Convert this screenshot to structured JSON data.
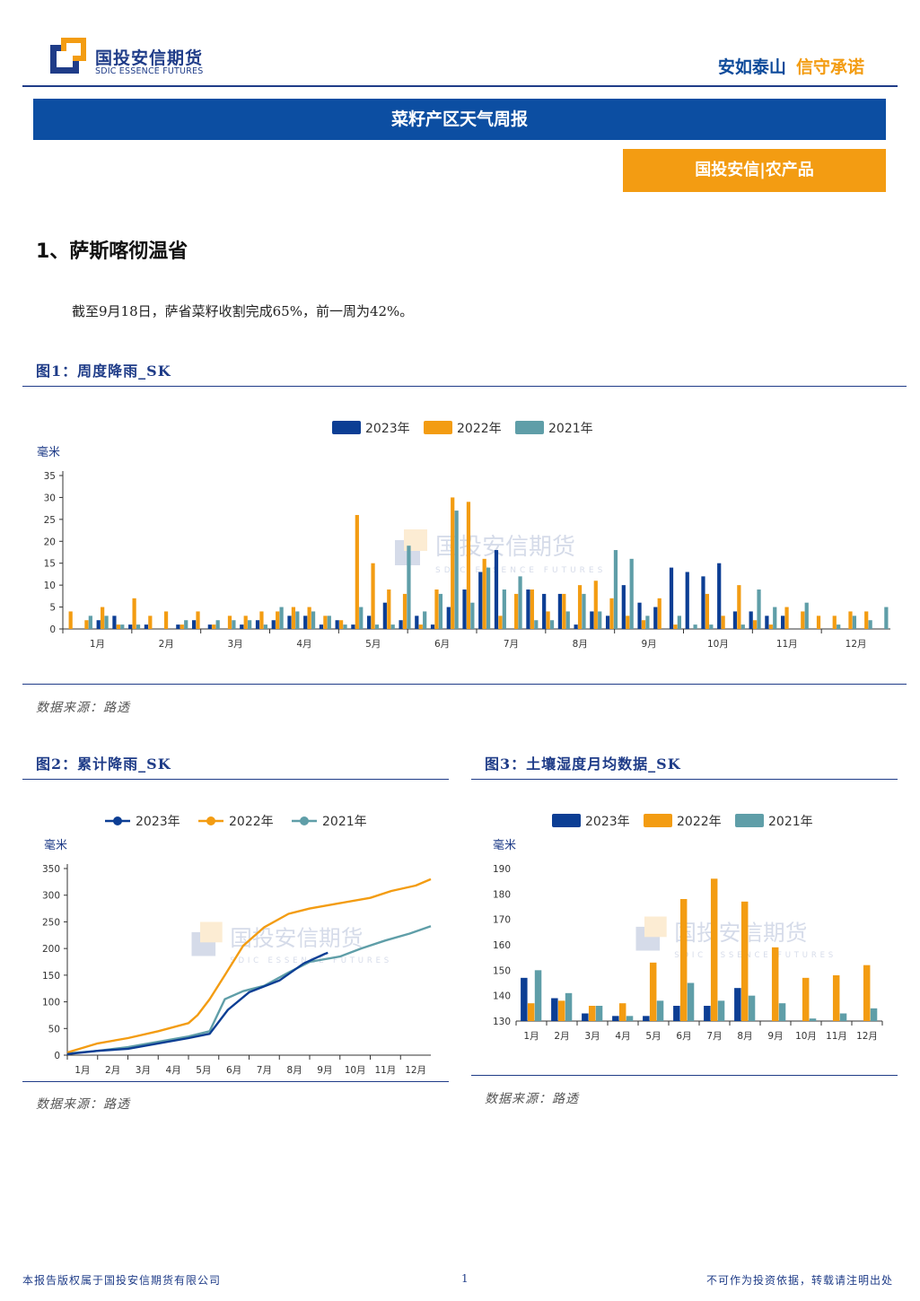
{
  "header": {
    "logo_cn": "国投安信期货",
    "logo_en": "SDIC ESSENCE FUTURES",
    "slogan_part1": "安如泰山",
    "slogan_part2": "信守承诺"
  },
  "banner": {
    "title": "菜籽产区天气周报"
  },
  "badge": {
    "label": "国投安信|农产品"
  },
  "section": {
    "heading": "1、萨斯喀彻温省"
  },
  "paragraph": {
    "text": "截至9月18日，萨省菜籽收割完成65%，前一周为42%。"
  },
  "watermark": {
    "cn": "国投安信期货",
    "en": "SDIC ESSENCE FUTURES"
  },
  "colors": {
    "s2023": "#0c3e94",
    "s2022": "#f39c12",
    "s2021": "#5f9ea8",
    "brand_blue": "#1f3c88",
    "brand_orange": "#f39c12"
  },
  "figure1": {
    "title": "图1：周度降雨_SK",
    "source": "数据来源：路透",
    "chart_data": {
      "type": "bar",
      "ylabel": "毫米",
      "ylim": [
        0,
        35
      ],
      "yticks": [
        "0",
        "5",
        "10",
        "15",
        "20",
        "25",
        "30",
        "35"
      ],
      "month_labels": [
        "1月",
        "2月",
        "3月",
        "4月",
        "5月",
        "6月",
        "7月",
        "8月",
        "9月",
        "10月",
        "11月",
        "12月"
      ],
      "weeks": 52,
      "series": [
        {
          "name": "2023年",
          "values": [
            0,
            0,
            2,
            3,
            1,
            1,
            0,
            1,
            2,
            1,
            0,
            1,
            2,
            2,
            3,
            3,
            1,
            2,
            1,
            3,
            6,
            2,
            3,
            1,
            5,
            9,
            13,
            18,
            0,
            9,
            8,
            8,
            1,
            4,
            3,
            10,
            6,
            5,
            14,
            13,
            12,
            15,
            4,
            4,
            3,
            3,
            0,
            0,
            0,
            0,
            0,
            0
          ]
        },
        {
          "name": "2022年",
          "values": [
            4,
            2,
            5,
            1,
            7,
            3,
            4,
            1,
            4,
            1,
            3,
            3,
            4,
            4,
            5,
            5,
            3,
            2,
            26,
            15,
            9,
            8,
            1,
            9,
            30,
            29,
            16,
            3,
            8,
            9,
            4,
            8,
            10,
            11,
            7,
            3,
            2,
            7,
            1,
            0,
            8,
            3,
            10,
            2,
            1,
            5,
            4,
            3,
            3,
            4,
            4,
            0
          ]
        },
        {
          "name": "2021年",
          "values": [
            0,
            3,
            3,
            1,
            1,
            0,
            0,
            2,
            0,
            2,
            2,
            2,
            1,
            5,
            4,
            4,
            3,
            1,
            5,
            1,
            1,
            19,
            4,
            8,
            27,
            6,
            14,
            9,
            12,
            2,
            2,
            4,
            8,
            4,
            18,
            16,
            3,
            0,
            3,
            1,
            1,
            0,
            1,
            9,
            5,
            0,
            6,
            0,
            1,
            3,
            2,
            5
          ]
        }
      ]
    }
  },
  "figure2": {
    "title": "图2：累计降雨_SK",
    "source": "数据来源：路透",
    "chart_data": {
      "type": "line",
      "ylabel": "毫米",
      "ylim": [
        0,
        350
      ],
      "yticks": [
        "0",
        "50",
        "100",
        "150",
        "200",
        "250",
        "300",
        "350"
      ],
      "month_labels": [
        "1月",
        "2月",
        "3月",
        "4月",
        "5月",
        "6月",
        "7月",
        "8月",
        "9月",
        "10月",
        "11月",
        "12月"
      ],
      "series": [
        {
          "name": "2023年",
          "points": [
            [
              0,
              2
            ],
            [
              1,
              8
            ],
            [
              2,
              12
            ],
            [
              3,
              22
            ],
            [
              4,
              32
            ],
            [
              4.7,
              40
            ],
            [
              5.3,
              85
            ],
            [
              6,
              118
            ],
            [
              7,
              140
            ],
            [
              7.8,
              172
            ],
            [
              8.5,
              190
            ],
            [
              8.6,
              192
            ]
          ]
        },
        {
          "name": "2022年",
          "points": [
            [
              0,
              5
            ],
            [
              1,
              22
            ],
            [
              2,
              32
            ],
            [
              3,
              45
            ],
            [
              4,
              60
            ],
            [
              4.3,
              75
            ],
            [
              4.7,
              105
            ],
            [
              5.2,
              150
            ],
            [
              5.8,
              205
            ],
            [
              6.5,
              240
            ],
            [
              7.3,
              265
            ],
            [
              8,
              275
            ],
            [
              9,
              285
            ],
            [
              10,
              295
            ],
            [
              10.7,
              308
            ],
            [
              11.5,
              318
            ],
            [
              12,
              330
            ]
          ]
        },
        {
          "name": "2021年",
          "points": [
            [
              0,
              3
            ],
            [
              1,
              8
            ],
            [
              2,
              15
            ],
            [
              3,
              25
            ],
            [
              4,
              35
            ],
            [
              4.7,
              45
            ],
            [
              5.2,
              105
            ],
            [
              5.8,
              120
            ],
            [
              6.5,
              130
            ],
            [
              7.3,
              155
            ],
            [
              8,
              175
            ],
            [
              9,
              185
            ],
            [
              9.7,
              200
            ],
            [
              10.5,
              215
            ],
            [
              11.3,
              228
            ],
            [
              12,
              242
            ]
          ]
        }
      ]
    }
  },
  "figure3": {
    "title": "图3：土壤湿度月均数据_SK",
    "source": "数据来源：路透",
    "chart_data": {
      "type": "bar",
      "ylabel": "毫米",
      "ylim": [
        130,
        190
      ],
      "yticks": [
        "130",
        "140",
        "150",
        "160",
        "170",
        "180",
        "190"
      ],
      "categories": [
        "1月",
        "2月",
        "3月",
        "4月",
        "5月",
        "6月",
        "7月",
        "8月",
        "9月",
        "10月",
        "11月",
        "12月"
      ],
      "series": [
        {
          "name": "2023年",
          "values": [
            147,
            139,
            133,
            132,
            132,
            136,
            136,
            143,
            130,
            130,
            130,
            130
          ]
        },
        {
          "name": "2022年",
          "values": [
            137,
            138,
            136,
            137,
            153,
            178,
            186,
            177,
            159,
            147,
            148,
            152
          ]
        },
        {
          "name": "2021年",
          "values": [
            150,
            141,
            136,
            132,
            138,
            145,
            138,
            140,
            137,
            131,
            133,
            135
          ]
        }
      ]
    }
  },
  "footer": {
    "copyright": "本报告版权属于国投安信期货有限公司",
    "page": "1",
    "disclaimer": "不可作为投资依据，转载请注明出处"
  }
}
